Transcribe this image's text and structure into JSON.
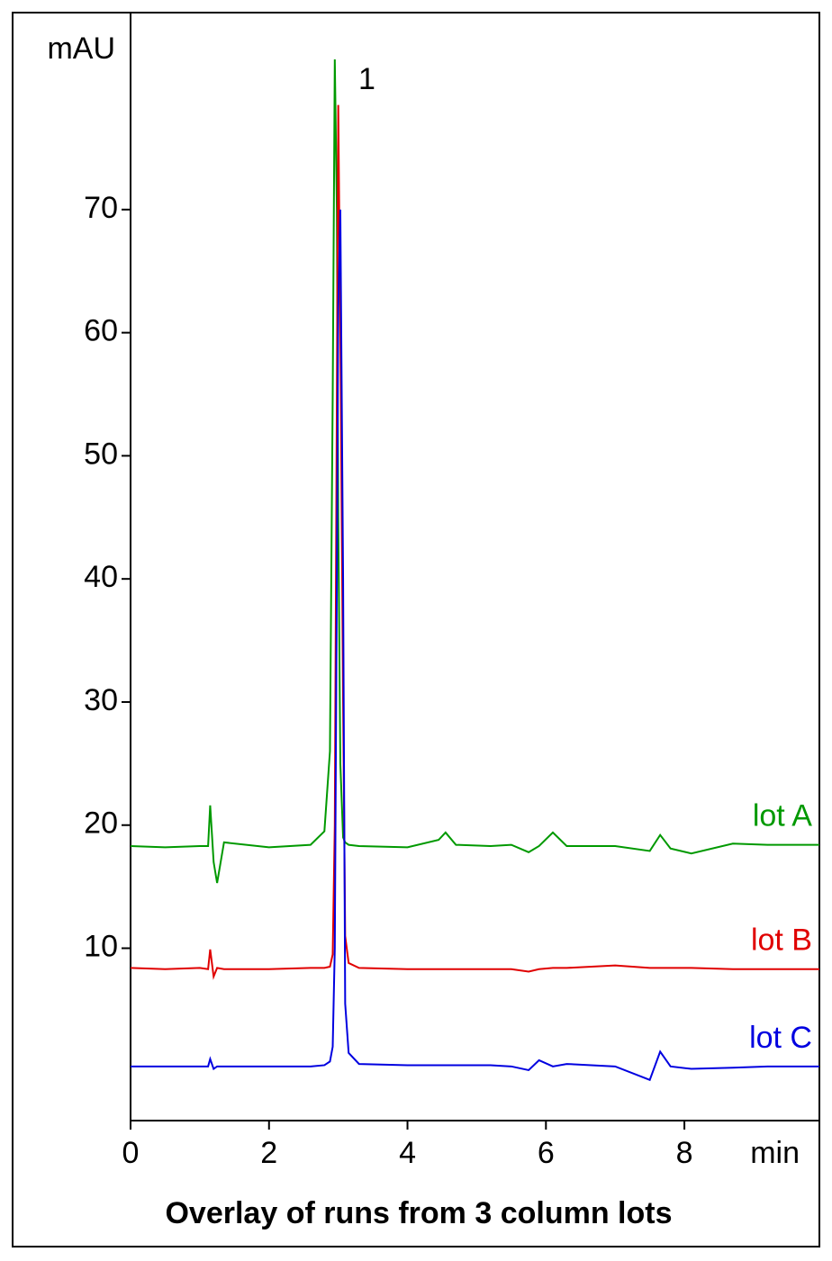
{
  "chart_data": {
    "type": "line",
    "title": "Overlay of runs from 3 column lots",
    "x_label": "min",
    "y_label": "mAU",
    "annotation": "1",
    "x": [
      0,
      0.5,
      1.0,
      1.12,
      1.15,
      1.2,
      1.25,
      1.35,
      2.0,
      2.6,
      2.8,
      2.88,
      2.92,
      2.95,
      2.98,
      3.0,
      3.03,
      3.07,
      3.1,
      3.15,
      3.3,
      4.0,
      4.45,
      4.55,
      4.7,
      5.2,
      5.5,
      5.75,
      5.9,
      6.1,
      6.3,
      7.0,
      7.5,
      7.65,
      7.8,
      8.1,
      8.7,
      9.2,
      9.95
    ],
    "series": [
      {
        "name": "lot A",
        "color": "#009900",
        "values": [
          18.3,
          18.2,
          18.3,
          18.3,
          21.6,
          17,
          15.3,
          18.6,
          18.2,
          18.4,
          19.5,
          26,
          55,
          82.2,
          70,
          45,
          25,
          19,
          18.6,
          18.4,
          18.3,
          18.2,
          18.8,
          19.4,
          18.4,
          18.3,
          18.4,
          17.8,
          18.3,
          19.4,
          18.3,
          18.3,
          17.9,
          19.2,
          18.1,
          17.7,
          18.5,
          18.4,
          18.4
        ]
      },
      {
        "name": "lot B",
        "color": "#e00000",
        "values": [
          8.4,
          8.3,
          8.4,
          8.3,
          9.9,
          7.7,
          8.4,
          8.3,
          8.3,
          8.4,
          8.4,
          8.5,
          9.5,
          20,
          55,
          78.5,
          60,
          30,
          11,
          8.8,
          8.4,
          8.3,
          8.3,
          8.3,
          8.3,
          8.3,
          8.3,
          8.1,
          8.3,
          8.4,
          8.4,
          8.6,
          8.4,
          8.4,
          8.4,
          8.4,
          8.3,
          8.3,
          8.3
        ]
      },
      {
        "name": "lot C",
        "color": "#0000e0",
        "values": [
          0.4,
          0.4,
          0.4,
          0.4,
          1.0,
          0.2,
          0.4,
          0.4,
          0.4,
          0.4,
          0.5,
          0.8,
          2,
          10,
          40,
          62,
          70,
          40,
          5.5,
          1.5,
          0.6,
          0.5,
          0.5,
          0.5,
          0.5,
          0.5,
          0.4,
          0.1,
          0.9,
          0.4,
          0.6,
          0.4,
          -0.7,
          1.6,
          0.4,
          0.2,
          0.3,
          0.4,
          0.4
        ]
      }
    ],
    "xlim": [
      0,
      9.95
    ],
    "ylim": [
      -4,
      86
    ],
    "xticks": [
      0,
      2,
      4,
      6,
      8
    ],
    "yticks": [
      10,
      20,
      30,
      40,
      50,
      60,
      70
    ],
    "grid": false
  }
}
